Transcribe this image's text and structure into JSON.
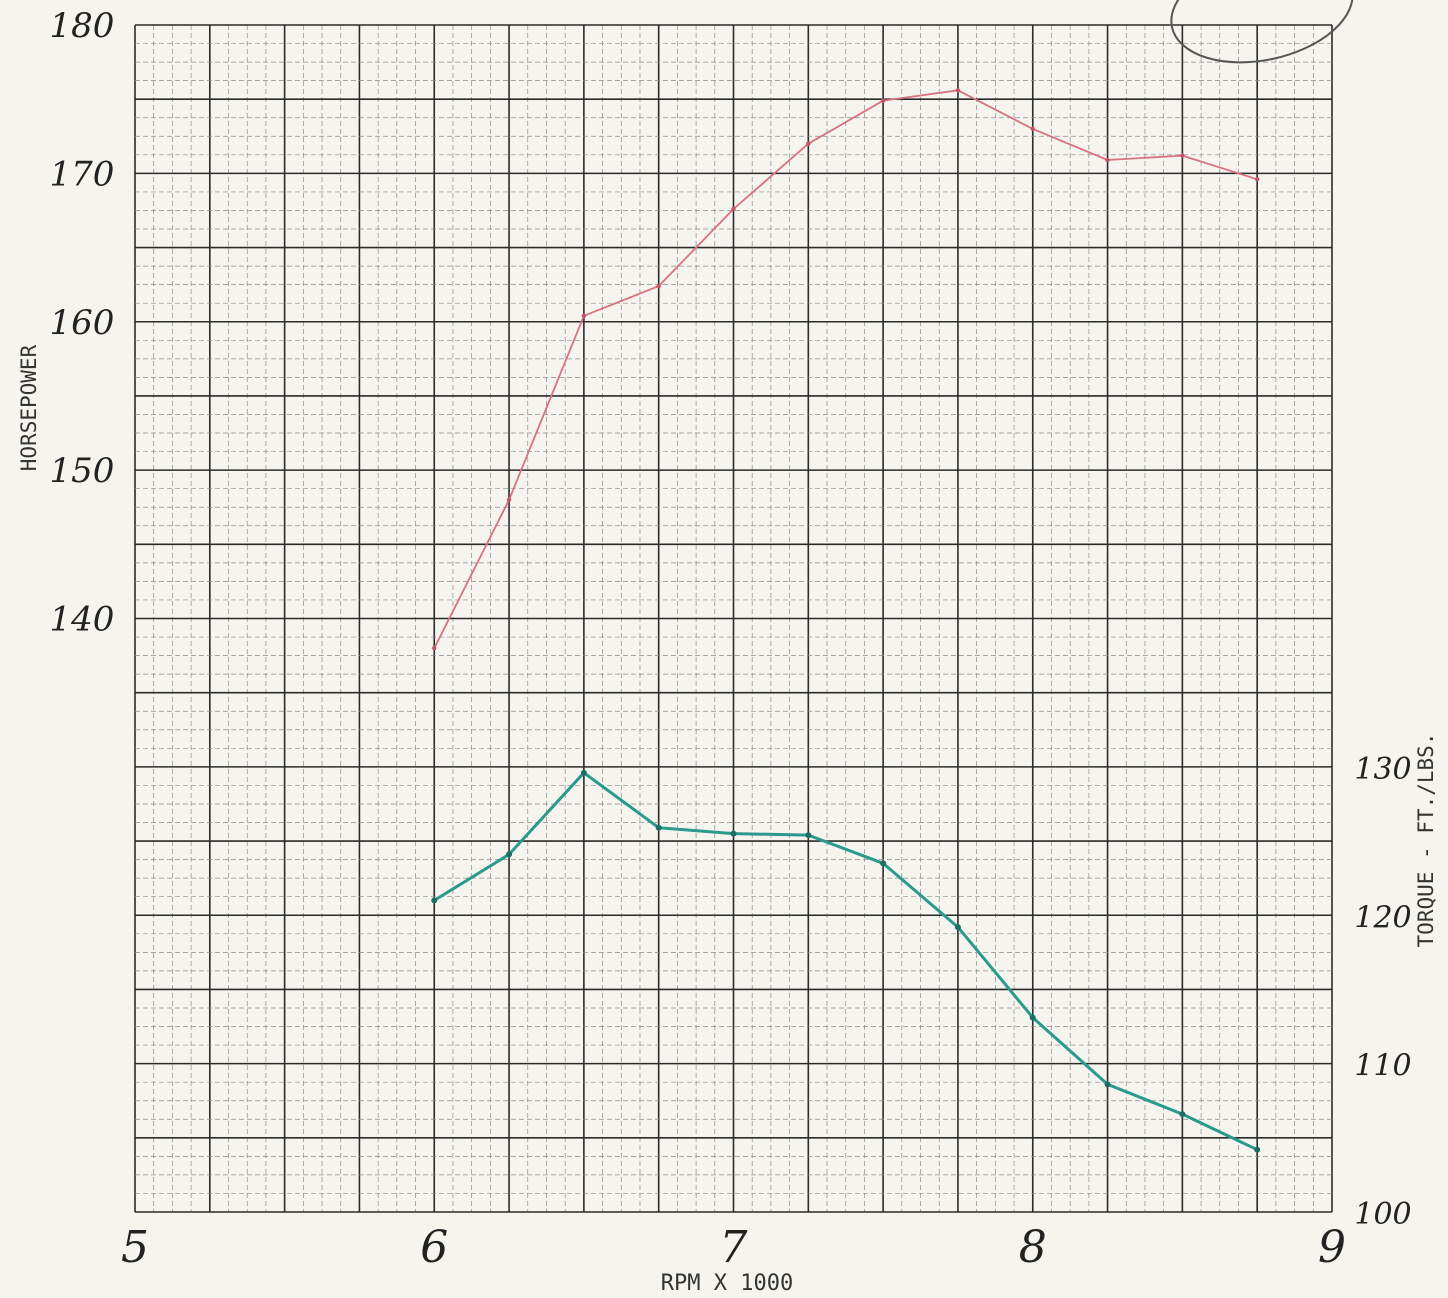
{
  "chart_data": {
    "type": "line",
    "xlabel": "RPM X 1000",
    "ylabel_left": "HORSEPOWER",
    "ylabel_right": "TORQUE - FT./LBS.",
    "x_ticks": [
      "5",
      "6",
      "7",
      "8",
      "9"
    ],
    "xlim": [
      5,
      9
    ],
    "y_left_ticks": [
      "180",
      "170",
      "160",
      "150",
      "140"
    ],
    "ylim_left": [
      100,
      180
    ],
    "y_right_ticks": [
      "130",
      "120",
      "110",
      "100"
    ],
    "ylim_right": [
      100,
      180
    ],
    "grid": true,
    "x": [
      6.0,
      6.25,
      6.5,
      6.75,
      7.0,
      7.25,
      7.5,
      7.75,
      8.0,
      8.25,
      8.5,
      8.75
    ],
    "series": [
      {
        "axis": "left",
        "color": "#d9727f",
        "values": [
          138.0,
          148.0,
          160.4,
          162.4,
          167.6,
          172.0,
          174.9,
          175.6,
          173.0,
          170.9,
          171.2,
          169.6
        ]
      },
      {
        "axis": "right",
        "color": "#2a9a8c",
        "x": [
          6.0,
          6.25,
          6.5,
          6.75,
          7.0,
          7.25,
          7.5,
          7.75,
          8.0,
          8.25,
          8.5,
          8.75
        ],
        "values": [
          121.0,
          124.1,
          129.6,
          125.9,
          125.5,
          125.4,
          123.5,
          119.2,
          113.1,
          108.6,
          106.6,
          104.2
        ]
      }
    ]
  }
}
